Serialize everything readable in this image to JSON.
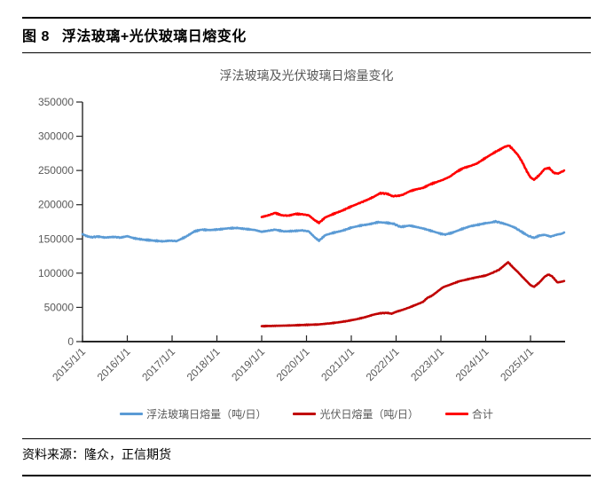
{
  "header": {
    "figure_no": "图 8",
    "title": "浮法玻璃+光伏玻璃日熔变化"
  },
  "source": {
    "text": "资料来源：隆众，正信期货"
  },
  "chart_data": {
    "type": "line",
    "title": "浮法玻璃及光伏玻璃日熔量变化",
    "xlabel": "",
    "ylabel": "",
    "grid": false,
    "legend_position": "bottom",
    "y_axis": {
      "min": 0,
      "max": 350000,
      "step": 50000,
      "tick_labels": [
        "0",
        "50000",
        "100000",
        "150000",
        "200000",
        "250000",
        "300000",
        "350000"
      ]
    },
    "x_axis": {
      "start_year": 2015,
      "end_year": 2025.77,
      "tick_labels": [
        "2015/1/1",
        "2016/1/1",
        "2017/1/1",
        "2018/1/1",
        "2019/1/1",
        "2020/1/1",
        "2021/1/1",
        "2022/1/1",
        "2023/1/1",
        "2024/1/1",
        "2025/1/1"
      ]
    },
    "axis_color": "#262626",
    "label_color": "#595959",
    "series": [
      {
        "name": "浮法玻璃日熔量（吨/日）",
        "color": "#5B9BD5",
        "points": [
          [
            2015.0,
            157000
          ],
          [
            2015.1,
            154000
          ],
          [
            2015.2,
            152500
          ],
          [
            2015.35,
            153500
          ],
          [
            2015.5,
            152000
          ],
          [
            2015.7,
            153000
          ],
          [
            2015.85,
            152000
          ],
          [
            2016.0,
            154000
          ],
          [
            2016.15,
            151000
          ],
          [
            2016.35,
            149000
          ],
          [
            2016.6,
            147500
          ],
          [
            2016.8,
            146500
          ],
          [
            2016.95,
            147500
          ],
          [
            2017.1,
            146800
          ],
          [
            2017.3,
            153000
          ],
          [
            2017.5,
            161000
          ],
          [
            2017.65,
            163500
          ],
          [
            2017.85,
            163000
          ],
          [
            2018.05,
            164000
          ],
          [
            2018.25,
            165500
          ],
          [
            2018.45,
            166000
          ],
          [
            2018.65,
            164500
          ],
          [
            2018.85,
            163000
          ],
          [
            2019.0,
            160500
          ],
          [
            2019.15,
            162000
          ],
          [
            2019.3,
            163500
          ],
          [
            2019.5,
            161000
          ],
          [
            2019.7,
            161500
          ],
          [
            2019.9,
            162500
          ],
          [
            2020.05,
            161000
          ],
          [
            2020.18,
            152500
          ],
          [
            2020.28,
            147500
          ],
          [
            2020.42,
            155500
          ],
          [
            2020.6,
            159000
          ],
          [
            2020.8,
            162000
          ],
          [
            2021.0,
            166500
          ],
          [
            2021.2,
            169500
          ],
          [
            2021.4,
            171500
          ],
          [
            2021.6,
            174500
          ],
          [
            2021.8,
            173500
          ],
          [
            2021.95,
            172000
          ],
          [
            2022.1,
            167500
          ],
          [
            2022.3,
            169500
          ],
          [
            2022.45,
            167500
          ],
          [
            2022.62,
            165000
          ],
          [
            2022.8,
            161500
          ],
          [
            2023.0,
            157500
          ],
          [
            2023.1,
            156500
          ],
          [
            2023.25,
            159000
          ],
          [
            2023.45,
            164000
          ],
          [
            2023.65,
            168500
          ],
          [
            2023.85,
            171000
          ],
          [
            2024.0,
            173000
          ],
          [
            2024.12,
            174000
          ],
          [
            2024.22,
            175500
          ],
          [
            2024.35,
            173500
          ],
          [
            2024.5,
            170500
          ],
          [
            2024.65,
            166500
          ],
          [
            2024.8,
            160500
          ],
          [
            2024.95,
            154500
          ],
          [
            2025.08,
            151500
          ],
          [
            2025.2,
            155000
          ],
          [
            2025.32,
            156000
          ],
          [
            2025.45,
            153500
          ],
          [
            2025.6,
            156500
          ],
          [
            2025.7,
            157500
          ],
          [
            2025.75,
            159500
          ]
        ]
      },
      {
        "name": "光伏日熔量（吨/日）",
        "color": "#C00000",
        "points": [
          [
            2019.0,
            22500
          ],
          [
            2019.25,
            23000
          ],
          [
            2019.5,
            23300
          ],
          [
            2019.75,
            23800
          ],
          [
            2020.0,
            24500
          ],
          [
            2020.25,
            25000
          ],
          [
            2020.5,
            26500
          ],
          [
            2020.7,
            28000
          ],
          [
            2020.9,
            30000
          ],
          [
            2021.1,
            32500
          ],
          [
            2021.3,
            35500
          ],
          [
            2021.5,
            39500
          ],
          [
            2021.65,
            41500
          ],
          [
            2021.8,
            42000
          ],
          [
            2021.9,
            40800
          ],
          [
            2022.0,
            43500
          ],
          [
            2022.15,
            46500
          ],
          [
            2022.3,
            50000
          ],
          [
            2022.45,
            54000
          ],
          [
            2022.6,
            58000
          ],
          [
            2022.7,
            64000
          ],
          [
            2022.8,
            67000
          ],
          [
            2022.9,
            72000
          ],
          [
            2023.05,
            79500
          ],
          [
            2023.2,
            83000
          ],
          [
            2023.4,
            88000
          ],
          [
            2023.6,
            91000
          ],
          [
            2023.8,
            94000
          ],
          [
            2024.0,
            96500
          ],
          [
            2024.15,
            100500
          ],
          [
            2024.3,
            105000
          ],
          [
            2024.4,
            110500
          ],
          [
            2024.5,
            116000
          ],
          [
            2024.6,
            109000
          ],
          [
            2024.72,
            101500
          ],
          [
            2024.85,
            92500
          ],
          [
            2025.0,
            82500
          ],
          [
            2025.08,
            80000
          ],
          [
            2025.2,
            86500
          ],
          [
            2025.32,
            95000
          ],
          [
            2025.4,
            98000
          ],
          [
            2025.48,
            95500
          ],
          [
            2025.6,
            86500
          ],
          [
            2025.7,
            87500
          ],
          [
            2025.75,
            88500
          ]
        ]
      },
      {
        "name": "合计",
        "color": "#FF0000",
        "points": [
          [
            2019.0,
            182000
          ],
          [
            2019.15,
            184500
          ],
          [
            2019.3,
            188000
          ],
          [
            2019.45,
            184500
          ],
          [
            2019.6,
            184000
          ],
          [
            2019.75,
            186500
          ],
          [
            2019.9,
            186000
          ],
          [
            2020.05,
            184500
          ],
          [
            2020.18,
            177500
          ],
          [
            2020.28,
            173500
          ],
          [
            2020.42,
            181500
          ],
          [
            2020.6,
            186500
          ],
          [
            2020.8,
            191500
          ],
          [
            2021.0,
            197500
          ],
          [
            2021.15,
            201500
          ],
          [
            2021.3,
            205500
          ],
          [
            2021.5,
            211500
          ],
          [
            2021.65,
            217000
          ],
          [
            2021.8,
            216000
          ],
          [
            2021.92,
            212500
          ],
          [
            2022.05,
            213000
          ],
          [
            2022.15,
            214500
          ],
          [
            2022.3,
            219500
          ],
          [
            2022.45,
            222500
          ],
          [
            2022.6,
            224500
          ],
          [
            2022.75,
            229500
          ],
          [
            2022.9,
            233000
          ],
          [
            2023.05,
            236500
          ],
          [
            2023.2,
            241000
          ],
          [
            2023.35,
            248000
          ],
          [
            2023.5,
            253500
          ],
          [
            2023.65,
            256500
          ],
          [
            2023.8,
            260000
          ],
          [
            2024.0,
            268500
          ],
          [
            2024.1,
            272500
          ],
          [
            2024.2,
            276500
          ],
          [
            2024.3,
            280000
          ],
          [
            2024.42,
            284500
          ],
          [
            2024.52,
            286500
          ],
          [
            2024.62,
            280000
          ],
          [
            2024.72,
            272500
          ],
          [
            2024.82,
            262000
          ],
          [
            2024.92,
            248500
          ],
          [
            2025.0,
            240000
          ],
          [
            2025.08,
            236500
          ],
          [
            2025.2,
            243500
          ],
          [
            2025.32,
            252500
          ],
          [
            2025.42,
            253500
          ],
          [
            2025.52,
            246500
          ],
          [
            2025.62,
            245500
          ],
          [
            2025.72,
            249000
          ],
          [
            2025.75,
            250000
          ]
        ]
      }
    ]
  }
}
